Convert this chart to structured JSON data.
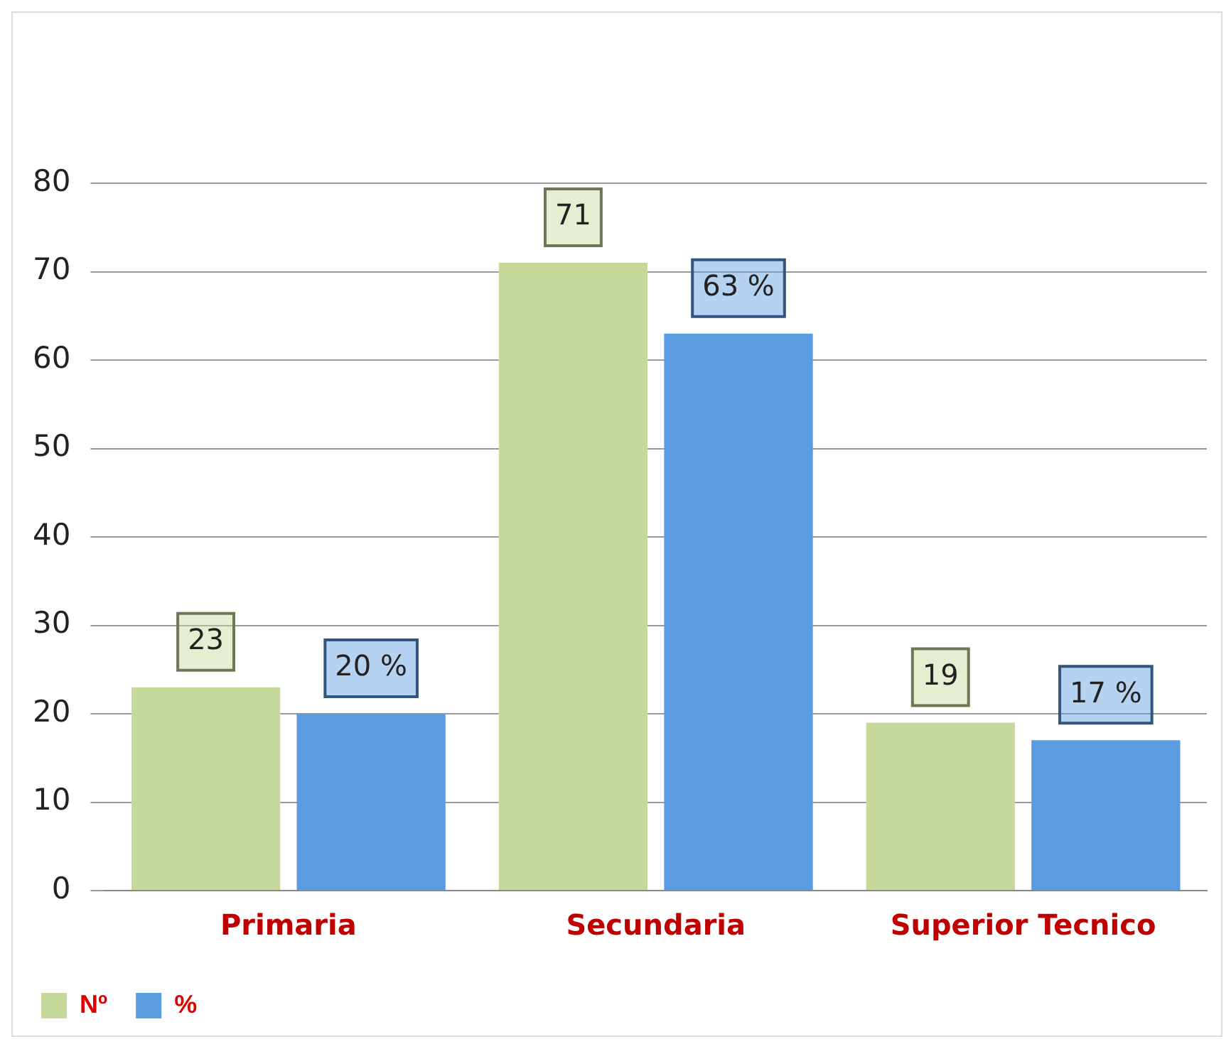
{
  "chart_data": {
    "type": "bar",
    "categories": [
      "Primaria",
      "Secundaria",
      "Superior Tecnico"
    ],
    "series": [
      {
        "name": "Nº",
        "color": "#c6d99a",
        "values": [
          23,
          71,
          19
        ],
        "value_labels": [
          "23",
          "71",
          "19"
        ]
      },
      {
        "name": "%",
        "color": "#5b9be0",
        "values": [
          20,
          63,
          17
        ],
        "value_labels": [
          "20 %",
          "63 %",
          "17 %"
        ]
      }
    ],
    "ylim": [
      0,
      80
    ],
    "yticks": [
      0,
      10,
      20,
      30,
      40,
      50,
      60,
      70,
      80
    ],
    "grid": "y",
    "legend": "bottom left"
  }
}
